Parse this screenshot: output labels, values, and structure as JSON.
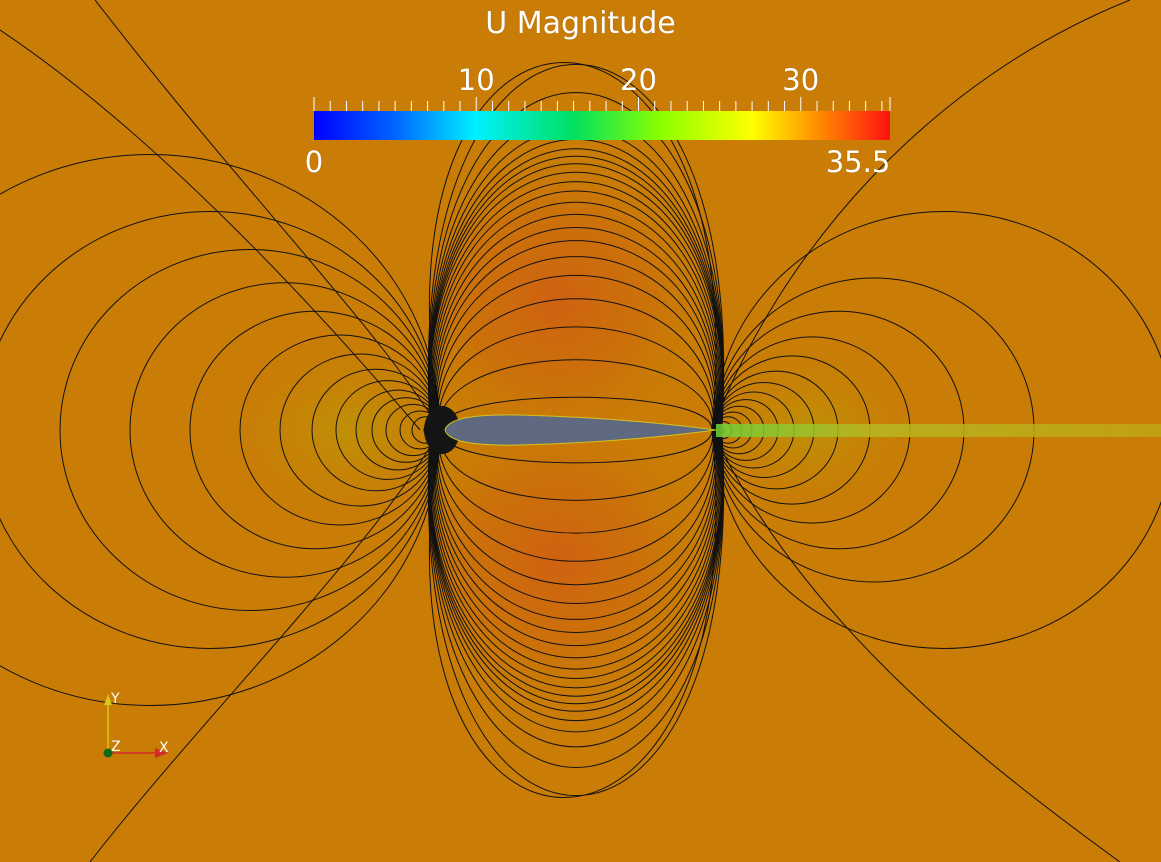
{
  "colorbar": {
    "title": "U Magnitude",
    "min_label": "0",
    "max_label": "35.5",
    "min": 0,
    "max": 35.5,
    "ticks": [
      "10",
      "20",
      "30"
    ],
    "tick_values": [
      10,
      20,
      30
    ],
    "minor_tick_step": 1
  },
  "axes_triad": {
    "x_label": "X",
    "y_label": "Y",
    "z_label": "Z",
    "x_color": "#d42a2a",
    "y_color": "#d8c81a",
    "z_color": "#0f6b1a"
  },
  "colors": {
    "background_field": "#c97c06",
    "contour_line": "#111111",
    "airfoil": "#5f6a80",
    "wake": "#b8b822"
  }
}
